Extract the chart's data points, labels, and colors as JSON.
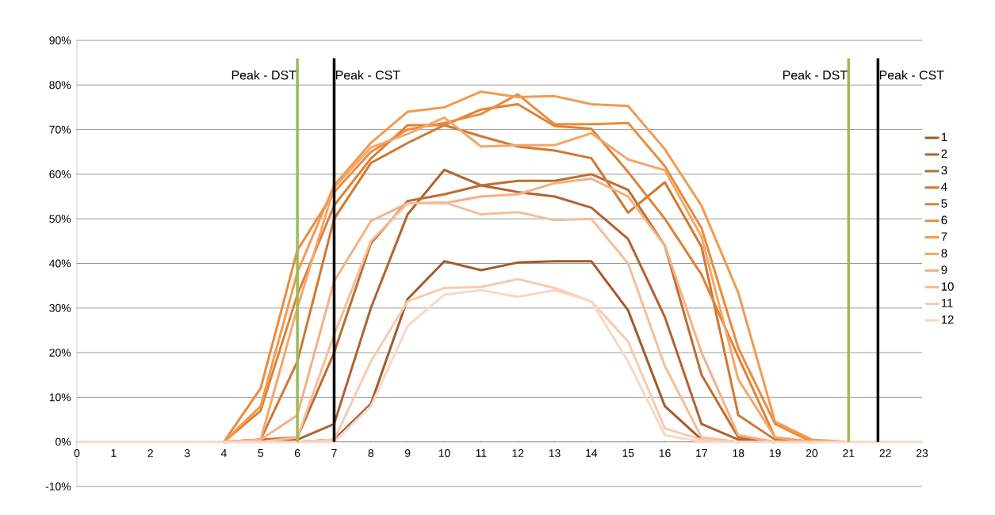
{
  "chart_data": {
    "type": "line",
    "x": [
      0,
      1,
      2,
      3,
      4,
      5,
      6,
      7,
      8,
      9,
      10,
      11,
      12,
      13,
      14,
      15,
      16,
      17,
      18,
      19,
      20,
      21,
      22,
      23
    ],
    "xlim": [
      0,
      23
    ],
    "xticks": [
      0,
      1,
      2,
      3,
      4,
      5,
      6,
      7,
      8,
      9,
      10,
      11,
      12,
      13,
      14,
      15,
      16,
      17,
      18,
      19,
      20,
      21,
      22,
      23
    ],
    "ylim": [
      -10,
      90
    ],
    "yticks": [
      {
        "value": -10,
        "label": "-10%"
      },
      {
        "value": 0,
        "label": "0%"
      },
      {
        "value": 10,
        "label": "10%"
      },
      {
        "value": 20,
        "label": "20%"
      },
      {
        "value": 30,
        "label": "30%"
      },
      {
        "value": 40,
        "label": "40%"
      },
      {
        "value": 50,
        "label": "50%"
      },
      {
        "value": 60,
        "label": "60%"
      },
      {
        "value": 70,
        "label": "70%"
      },
      {
        "value": 80,
        "label": "80%"
      },
      {
        "value": 90,
        "label": "90%"
      }
    ],
    "grid": "y",
    "legend": "right",
    "marker": "none",
    "line_style": "solid",
    "series": [
      {
        "name": "1",
        "color": "#a35a2a",
        "values": [
          null,
          null,
          null,
          null,
          null,
          null,
          0,
          0.5,
          8.5,
          32,
          40.5,
          38.5,
          40.2,
          40.5,
          40.5,
          29.5,
          8,
          0.5,
          0,
          null,
          null,
          null,
          null,
          null
        ]
      },
      {
        "name": "2",
        "color": "#b1632d",
        "values": [
          null,
          null,
          null,
          null,
          null,
          0,
          0.5,
          4,
          30,
          51,
          61,
          57.5,
          56,
          55,
          52.5,
          45.5,
          28,
          4,
          0.5,
          0,
          null,
          null,
          null,
          null
        ]
      },
      {
        "name": "3",
        "color": "#bf6d2f",
        "values": [
          null,
          null,
          null,
          null,
          0,
          0.5,
          1,
          20,
          44.5,
          54,
          55.5,
          57.5,
          58.5,
          58.5,
          60,
          56.5,
          44,
          15,
          1,
          0,
          null,
          null,
          null,
          null
        ]
      },
      {
        "name": "4",
        "color": "#d07832",
        "values": [
          null,
          null,
          null,
          null,
          0,
          0.5,
          18,
          50,
          62.5,
          67,
          71,
          68.5,
          66.2,
          65.3,
          63.6,
          51.4,
          58.2,
          43.7,
          6,
          0.5,
          0,
          null,
          null,
          null
        ]
      },
      {
        "name": "5",
        "color": "#de8236",
        "values": [
          null,
          null,
          null,
          null,
          0,
          7,
          33,
          53,
          63.5,
          71,
          71,
          74.5,
          75.7,
          70.8,
          70.2,
          60.5,
          50,
          37.5,
          19,
          1,
          0,
          null,
          null,
          null
        ]
      },
      {
        "name": "6",
        "color": "#ec8b3a",
        "values": [
          null,
          null,
          null,
          null,
          0,
          12,
          43,
          56,
          65,
          70,
          71.5,
          73.5,
          77.9,
          71.2,
          71.2,
          71.5,
          61.8,
          47.9,
          21,
          4,
          0,
          null,
          null,
          null
        ]
      },
      {
        "name": "7",
        "color": "#f29a4f",
        "values": [
          null,
          null,
          null,
          null,
          0,
          8,
          38,
          57.5,
          67,
          74,
          75,
          78.5,
          77.3,
          77.5,
          75.7,
          75.3,
          65.6,
          52.9,
          33.4,
          4.5,
          0.5,
          0,
          null,
          null
        ]
      },
      {
        "name": "8",
        "color": "#f4a66b",
        "values": [
          null,
          null,
          null,
          null,
          0,
          0.5,
          30,
          57,
          66,
          69,
          72.7,
          66.2,
          66.5,
          66.5,
          69.2,
          63.3,
          60.9,
          46,
          14,
          1,
          0,
          null,
          null,
          null
        ]
      },
      {
        "name": "9",
        "color": "#f5b083",
        "values": [
          null,
          null,
          null,
          null,
          0,
          0.5,
          6,
          36,
          49.5,
          53.5,
          53.5,
          55,
          55.5,
          58,
          59,
          55,
          44,
          20,
          1.5,
          0,
          null,
          null,
          null,
          null
        ]
      },
      {
        "name": "10",
        "color": "#f5be9b",
        "values": [
          null,
          null,
          null,
          null,
          null,
          0,
          1,
          24,
          45,
          53.5,
          53.7,
          51,
          51.5,
          49.7,
          50,
          40,
          17,
          1,
          0,
          null,
          null,
          null,
          null,
          null
        ]
      },
      {
        "name": "11",
        "color": "#f6cbb1",
        "values": [
          null,
          null,
          null,
          null,
          null,
          null,
          0,
          0.5,
          18,
          31.5,
          34.5,
          34.7,
          36.5,
          34.5,
          31.5,
          22.5,
          3,
          0.5,
          0,
          null,
          null,
          null,
          null,
          null
        ]
      },
      {
        "name": "12",
        "color": "#f8d8c6",
        "values": [
          0,
          0,
          0,
          0,
          0,
          0,
          0,
          0,
          8,
          26,
          33,
          34,
          32.5,
          34,
          31.5,
          18,
          1.5,
          0,
          0,
          0,
          0,
          0,
          0,
          0
        ]
      }
    ],
    "ref_lines": [
      {
        "axis": "x",
        "value": 6,
        "label": "Peak - DST",
        "color": "#9bbb59"
      },
      {
        "axis": "x",
        "value": 7,
        "label": "Peak - CST",
        "color": "#000000"
      },
      {
        "axis": "x",
        "value": 21,
        "label": "Peak - DST",
        "color": "#9bbb59"
      },
      {
        "axis": "x",
        "value": 21.8,
        "label": "Peak - CST",
        "color": "#000000"
      }
    ]
  }
}
